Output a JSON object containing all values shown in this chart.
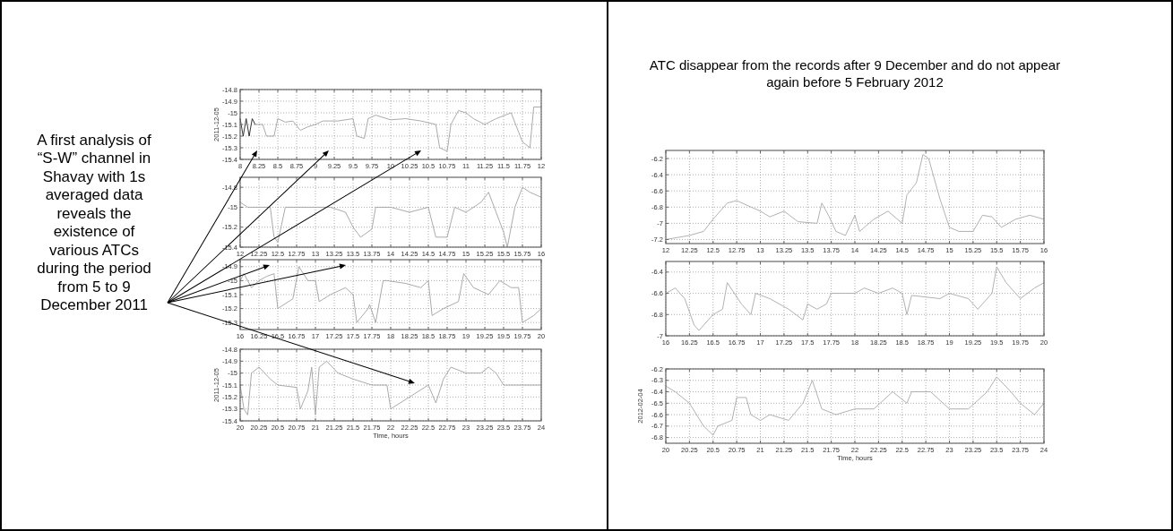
{
  "chart_data": [
    {
      "type": "line",
      "ylabel": "2011-12-05",
      "annotations": [
        "A first analysis of “S-W” channel in Shavay with 1s averaged data reveals the existence of various ATCs during the period from 5 to 9 December 2011"
      ],
      "grid": true,
      "xlim": [
        8,
        12
      ],
      "ylim": [
        -15.4,
        -14.8
      ],
      "xticks": [
        8,
        8.25,
        8.5,
        8.75,
        9,
        9.25,
        9.5,
        9.75,
        10,
        10.25,
        10.5,
        10.75,
        11,
        11.25,
        11.5,
        11.75,
        12
      ],
      "yticks": [
        -15.4,
        -15.3,
        -15.2,
        -15.1,
        -15,
        -14.9,
        -14.8
      ],
      "series": [
        {
          "color": "#202020",
          "x": [
            8,
            8.04,
            8.08,
            8.12,
            8.16,
            8.2
          ],
          "values": [
            -15.05,
            -15.2,
            -15.05,
            -15.2,
            -15.05,
            -15.1
          ]
        },
        {
          "color": "#a0a0a0",
          "x": [
            8.2,
            8.3,
            8.35,
            8.45,
            8.5,
            8.6,
            8.7,
            8.8,
            8.9,
            9,
            9.1,
            9.3,
            9.5,
            9.55,
            9.65,
            9.7,
            9.8,
            10,
            10.2,
            10.4,
            10.6,
            10.65,
            10.75,
            10.8,
            10.9,
            11,
            11.1,
            11.25,
            11.4,
            11.6,
            11.75,
            11.85,
            11.9,
            12
          ],
          "values": [
            -15.1,
            -15.1,
            -15.2,
            -15.2,
            -15.05,
            -15.08,
            -15.07,
            -15.15,
            -15.12,
            -15.1,
            -15.07,
            -15.07,
            -15.05,
            -15.2,
            -15.22,
            -15.05,
            -15.02,
            -15.06,
            -15.05,
            -15.07,
            -15.1,
            -15.3,
            -15.33,
            -15.1,
            -14.98,
            -15,
            -15.05,
            -15.1,
            -15.05,
            -15,
            -15.25,
            -15.3,
            -14.95,
            -14.95
          ]
        }
      ]
    },
    {
      "type": "line",
      "grid": true,
      "xlim": [
        12,
        16
      ],
      "ylim": [
        -15.4,
        -14.7
      ],
      "xticks": [
        12,
        12.25,
        12.5,
        12.75,
        13,
        13.25,
        13.5,
        13.75,
        14,
        14.25,
        14.5,
        14.75,
        15,
        15.25,
        15.5,
        15.75,
        16
      ],
      "yticks": [
        -15.4,
        -15.2,
        -15,
        -14.8
      ],
      "series": [
        {
          "color": "#a0a0a0",
          "x": [
            12,
            12.1,
            12.25,
            12.4,
            12.45,
            12.5,
            12.6,
            12.75,
            13,
            13.2,
            13.4,
            13.5,
            13.6,
            13.75,
            13.8,
            14,
            14.25,
            14.5,
            14.6,
            14.75,
            14.85,
            15,
            15.2,
            15.3,
            15.4,
            15.5,
            15.55,
            15.65,
            15.75,
            15.85,
            16
          ],
          "values": [
            -14.95,
            -15,
            -15,
            -15,
            -15.3,
            -15.35,
            -15,
            -15,
            -15,
            -15,
            -15.05,
            -15.2,
            -15.3,
            -15.22,
            -15,
            -15,
            -15.05,
            -15,
            -15.3,
            -15.3,
            -15,
            -15.05,
            -14.95,
            -14.85,
            -15.05,
            -15.25,
            -15.4,
            -15,
            -14.8,
            -14.85,
            -14.9
          ]
        }
      ]
    },
    {
      "type": "line",
      "grid": true,
      "xlim": [
        16,
        20
      ],
      "ylim": [
        -15.35,
        -14.85
      ],
      "xticks": [
        16,
        16.25,
        16.5,
        16.75,
        17,
        17.25,
        17.5,
        17.75,
        18,
        18.25,
        18.5,
        18.75,
        19,
        19.25,
        19.5,
        19.75,
        20
      ],
      "yticks": [
        -15.3,
        -15.2,
        -15.1,
        -15,
        -14.9
      ],
      "series": [
        {
          "color": "#a0a0a0",
          "x": [
            16,
            16.05,
            16.15,
            16.25,
            16.35,
            16.45,
            16.5,
            16.7,
            16.78,
            16.9,
            17,
            17.05,
            17.2,
            17.4,
            17.5,
            17.55,
            17.7,
            17.72,
            17.8,
            17.9,
            17.95,
            18.2,
            18.4,
            18.5,
            18.55,
            18.7,
            18.9,
            18.97,
            19.1,
            19.3,
            19.45,
            19.6,
            19.7,
            19.75,
            19.9,
            20
          ],
          "values": [
            -15,
            -14.95,
            -15.05,
            -15,
            -14.97,
            -14.95,
            -15.2,
            -15.13,
            -14.9,
            -15,
            -15,
            -15.15,
            -15.1,
            -15.05,
            -15.1,
            -15.3,
            -15.2,
            -15.17,
            -15.3,
            -15,
            -15,
            -15.02,
            -15.05,
            -15,
            -15.25,
            -15.2,
            -15.15,
            -14.95,
            -15.05,
            -15.1,
            -15,
            -15.05,
            -15.05,
            -15.3,
            -15.25,
            -15.2
          ]
        }
      ]
    },
    {
      "type": "line",
      "xlabel": "Time, hours",
      "ylabel": "2011-12-05",
      "grid": true,
      "xlim": [
        20,
        24
      ],
      "ylim": [
        -15.4,
        -14.8
      ],
      "xticks": [
        20,
        20.25,
        20.5,
        20.75,
        21,
        21.25,
        21.5,
        21.75,
        22,
        22.25,
        22.5,
        22.75,
        23,
        23.25,
        23.5,
        23.75,
        24
      ],
      "yticks": [
        -15.4,
        -15.3,
        -15.2,
        -15.1,
        -15,
        -14.9,
        -14.8
      ],
      "series": [
        {
          "color": "#a0a0a0",
          "x": [
            20,
            20.05,
            20.1,
            20.15,
            20.25,
            20.4,
            20.5,
            20.75,
            20.8,
            20.9,
            20.95,
            21,
            21.05,
            21.15,
            21.3,
            21.5,
            21.75,
            21.95,
            22,
            22.25,
            22.5,
            22.6,
            22.7,
            22.8,
            23,
            23.2,
            23.3,
            23.4,
            23.5,
            23.75,
            24
          ],
          "values": [
            -15.1,
            -15.3,
            -15.35,
            -15,
            -14.95,
            -15.05,
            -15.1,
            -15.12,
            -15.3,
            -15.15,
            -14.95,
            -15.35,
            -14.95,
            -14.9,
            -15,
            -15.05,
            -15.1,
            -15.1,
            -15.3,
            -15.2,
            -15.1,
            -15.25,
            -15.05,
            -14.95,
            -15,
            -15,
            -14.95,
            -15,
            -15.1,
            -15.1,
            -15.1
          ]
        }
      ]
    },
    {
      "type": "line",
      "title": "ATC disappear from the records after 9 December and do not appear again before 5 February 2012",
      "grid": true,
      "xlim": [
        12,
        16
      ],
      "ylim": [
        -7.25,
        -6.1
      ],
      "xticks": [
        12,
        12.25,
        12.5,
        12.75,
        13,
        13.25,
        13.5,
        13.75,
        14,
        14.25,
        14.5,
        14.75,
        15,
        15.25,
        15.5,
        15.75,
        16
      ],
      "yticks": [
        -7.2,
        -7,
        -6.8,
        -6.6,
        -6.4,
        -6.2
      ],
      "series": [
        {
          "color": "#a8a8a8",
          "x": [
            12,
            12.25,
            12.4,
            12.5,
            12.65,
            12.75,
            13,
            13.1,
            13.25,
            13.4,
            13.6,
            13.65,
            13.72,
            13.8,
            13.9,
            14,
            14.05,
            14.2,
            14.35,
            14.5,
            14.55,
            14.65,
            14.72,
            14.78,
            14.9,
            15,
            15.1,
            15.25,
            15.35,
            15.45,
            15.55,
            15.7,
            15.85,
            16
          ],
          "values": [
            -7.2,
            -7.15,
            -7.1,
            -6.95,
            -6.75,
            -6.72,
            -6.85,
            -6.92,
            -6.85,
            -6.98,
            -7,
            -6.75,
            -6.9,
            -7.1,
            -7.15,
            -6.9,
            -7.1,
            -6.95,
            -6.85,
            -7,
            -6.65,
            -6.5,
            -6.15,
            -6.2,
            -6.7,
            -7.05,
            -7.1,
            -7.1,
            -6.9,
            -6.92,
            -7.05,
            -6.95,
            -6.9,
            -6.95
          ]
        }
      ]
    },
    {
      "type": "line",
      "grid": true,
      "xlim": [
        16,
        20
      ],
      "ylim": [
        -7,
        -6.3
      ],
      "xticks": [
        16,
        16.25,
        16.5,
        16.75,
        17,
        17.25,
        17.5,
        17.75,
        18,
        18.25,
        18.5,
        18.75,
        19,
        19.25,
        19.5,
        19.75,
        20
      ],
      "yticks": [
        -7,
        -6.8,
        -6.6,
        -6.4
      ],
      "series": [
        {
          "color": "#a8a8a8",
          "x": [
            16,
            16.1,
            16.2,
            16.3,
            16.35,
            16.5,
            16.6,
            16.65,
            16.8,
            16.9,
            16.95,
            17.1,
            17.3,
            17.45,
            17.5,
            17.6,
            17.7,
            17.75,
            18,
            18.1,
            18.25,
            18.4,
            18.5,
            18.55,
            18.6,
            18.9,
            19,
            19.2,
            19.3,
            19.45,
            19.5,
            19.6,
            19.75,
            19.9,
            20
          ],
          "values": [
            -6.6,
            -6.55,
            -6.65,
            -6.9,
            -6.95,
            -6.8,
            -6.75,
            -6.5,
            -6.7,
            -6.8,
            -6.6,
            -6.65,
            -6.75,
            -6.85,
            -6.7,
            -6.75,
            -6.7,
            -6.6,
            -6.6,
            -6.55,
            -6.6,
            -6.55,
            -6.6,
            -6.8,
            -6.62,
            -6.65,
            -6.6,
            -6.65,
            -6.75,
            -6.6,
            -6.35,
            -6.5,
            -6.65,
            -6.55,
            -6.5
          ]
        }
      ]
    },
    {
      "type": "line",
      "xlabel": "Time, hours",
      "ylabel": "2012-02-04",
      "grid": true,
      "xlim": [
        20,
        24
      ],
      "ylim": [
        -6.85,
        -6.2
      ],
      "xticks": [
        20,
        20.25,
        20.5,
        20.75,
        21,
        21.25,
        21.5,
        21.75,
        22,
        22.25,
        22.5,
        22.75,
        23,
        23.25,
        23.5,
        23.75,
        24
      ],
      "yticks": [
        -6.8,
        -6.7,
        -6.6,
        -6.5,
        -6.4,
        -6.3,
        -6.2
      ],
      "series": [
        {
          "color": "#a8a8a8",
          "x": [
            20,
            20.1,
            20.25,
            20.4,
            20.5,
            20.55,
            20.7,
            20.75,
            20.85,
            20.9,
            21,
            21.1,
            21.3,
            21.45,
            21.55,
            21.65,
            21.8,
            22,
            22.2,
            22.4,
            22.55,
            22.6,
            22.8,
            23,
            23.2,
            23.4,
            23.5,
            23.65,
            23.75,
            23.9,
            24
          ],
          "values": [
            -6.35,
            -6.4,
            -6.5,
            -6.7,
            -6.78,
            -6.7,
            -6.65,
            -6.45,
            -6.45,
            -6.6,
            -6.65,
            -6.6,
            -6.65,
            -6.5,
            -6.3,
            -6.55,
            -6.6,
            -6.55,
            -6.55,
            -6.4,
            -6.5,
            -6.4,
            -6.4,
            -6.55,
            -6.55,
            -6.4,
            -6.27,
            -6.4,
            -6.5,
            -6.6,
            -6.5
          ]
        }
      ]
    }
  ]
}
